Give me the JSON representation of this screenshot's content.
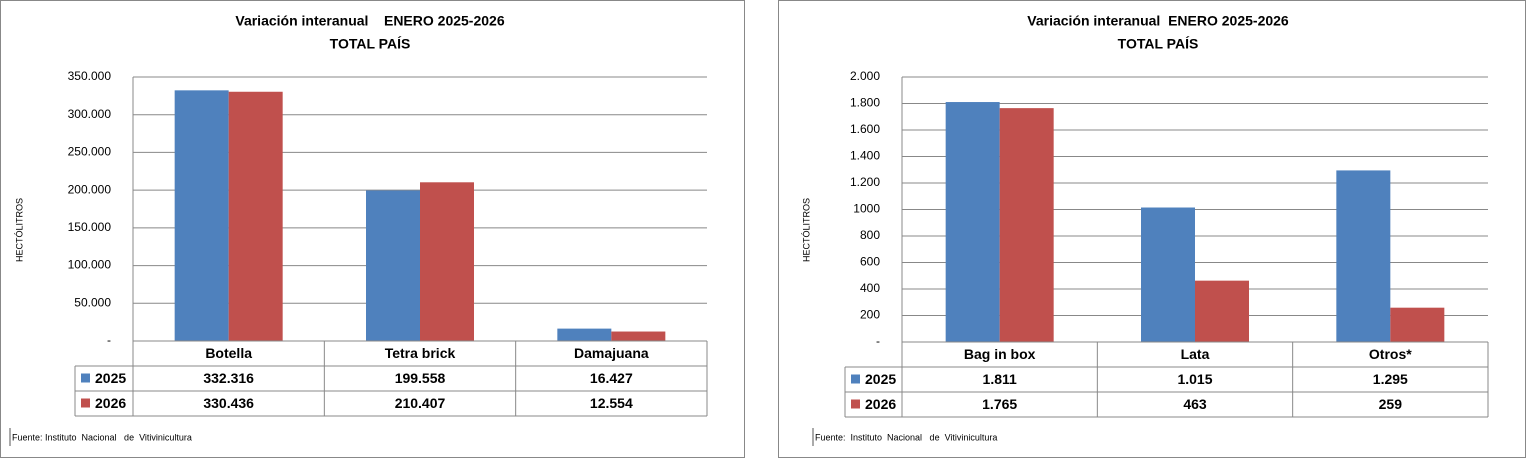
{
  "chart_data": [
    {
      "type": "bar",
      "title": "Variación interanual    ENERO 2025-2026",
      "subtitle": "TOTAL PAÍS",
      "y_label": "HECTÓLITROS",
      "categories": [
        "Botella",
        "Tetra brick",
        "Damajuana"
      ],
      "series": [
        {
          "name": "2025",
          "color": "#4f81bd",
          "values": [
            332316,
            199558,
            16427
          ],
          "value_labels": [
            "332.316",
            "199.558",
            "16.427"
          ]
        },
        {
          "name": "2026",
          "color": "#c0504d",
          "values": [
            330436,
            210407,
            12554
          ],
          "value_labels": [
            "330.436",
            "210.407",
            "12.554"
          ]
        }
      ],
      "ylim": [
        0,
        350000
      ],
      "yticks": [
        {
          "value": 0,
          "label": "-"
        },
        {
          "value": 50000,
          "label": "50.000"
        },
        {
          "value": 100000,
          "label": "100.000"
        },
        {
          "value": 150000,
          "label": "150.000"
        },
        {
          "value": 200000,
          "label": "200.000"
        },
        {
          "value": 250000,
          "label": "250.000"
        },
        {
          "value": 300000,
          "label": "300.000"
        },
        {
          "value": 350000,
          "label": "350.000"
        }
      ],
      "grid": true,
      "source": "Fuente: Instituto  Nacional   de  Vitivinicultura"
    },
    {
      "type": "bar",
      "title": "Variación interanual  ENERO 2025-2026",
      "subtitle": "TOTAL PAÍS",
      "y_label": "HECTÓLITROS",
      "categories": [
        "Bag in box",
        "Lata",
        "Otros*"
      ],
      "series": [
        {
          "name": "2025",
          "color": "#4f81bd",
          "values": [
            1811,
            1015,
            1295
          ],
          "value_labels": [
            "1.811",
            "1.015",
            "1.295"
          ]
        },
        {
          "name": "2026",
          "color": "#c0504d",
          "values": [
            1765,
            463,
            259
          ],
          "value_labels": [
            "1.765",
            "463",
            "259"
          ]
        }
      ],
      "ylim": [
        0,
        2000
      ],
      "yticks": [
        {
          "value": 0,
          "label": "-"
        },
        200,
        400,
        600,
        800,
        1000,
        {
          "value": 1200,
          "label": "1.200"
        },
        {
          "value": 1400,
          "label": "1.400"
        },
        {
          "value": 1600,
          "label": "1.600"
        },
        {
          "value": 1800,
          "label": "1.800"
        },
        {
          "value": 2000,
          "label": "2.000"
        }
      ],
      "grid": true,
      "source": "Fuente:  Instituto  Nacional   de  Vitivinicultura"
    }
  ]
}
